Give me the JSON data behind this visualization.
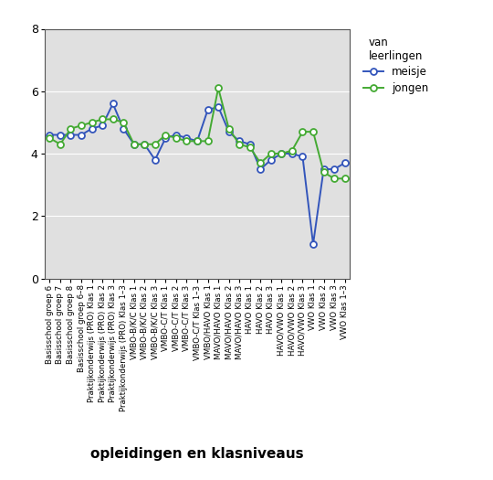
{
  "categories": [
    "Basisschool groep 6",
    "Basisschool groep 7",
    "Basisschool groep 8",
    "Basisschool groep 6–8",
    "Praktijkonderwijs (PRO) Klas 1",
    "Praktijkonderwijs (PRO) Klas 2",
    "Praktijkonderwijs (PRO) Klas 3",
    "Praktijkonderwijs (PRO) Klas 1–3",
    "VMBO-B/K/C Klas 1",
    "VMBO-B/K/C Klas 2",
    "VMBO-B/K/C Klas 3",
    "VMBO-C/T Klas 1",
    "VMBO-C/T Klas 2",
    "VMBO-C/T Klas 3",
    "VMBO-C/T Klas 1–3",
    "VMBO/HAVO Klas 1",
    "MAVO/HAVO Klas 1",
    "MAVO/HAVO Klas 2",
    "MAVO/HAVO Klas 3",
    "HAVO Klas 1",
    "HAVO Klas 2",
    "HAVO Klas 3",
    "HAVO/VWO Klas 1",
    "HAVO/VWO Klas 2",
    "HAVO/VWO Klas 3",
    "VWO Klas 1",
    "VWO Klas 2",
    "VWO Klas 3",
    "VWO Klas 1–3"
  ],
  "meisje": [
    4.6,
    4.6,
    4.6,
    4.6,
    4.8,
    4.9,
    5.6,
    4.8,
    4.3,
    4.3,
    3.8,
    4.5,
    4.6,
    4.5,
    4.4,
    5.4,
    5.5,
    4.7,
    4.4,
    4.3,
    3.5,
    3.8,
    4.0,
    4.0,
    3.9,
    1.1,
    3.5,
    3.5,
    3.7
  ],
  "jongen": [
    4.5,
    4.3,
    4.8,
    4.9,
    5.0,
    5.1,
    5.1,
    5.0,
    4.3,
    4.3,
    4.3,
    4.6,
    4.5,
    4.4,
    4.4,
    4.4,
    6.1,
    4.8,
    4.3,
    4.2,
    3.7,
    4.0,
    4.0,
    4.1,
    4.7,
    4.7,
    3.4,
    3.2,
    3.2
  ],
  "meisje_color": "#3355bb",
  "jongen_color": "#44aa33",
  "ylim": [
    0,
    8
  ],
  "yticks": [
    0,
    2,
    4,
    6,
    8
  ],
  "xlabel": "opleidingen en klasniveaus",
  "legend_title": "van\nleerlingen",
  "legend_meisje": "meisje",
  "legend_jongen": "jongen",
  "bg_color": "#e0e0e0",
  "linewidth": 1.4,
  "markersize": 5
}
